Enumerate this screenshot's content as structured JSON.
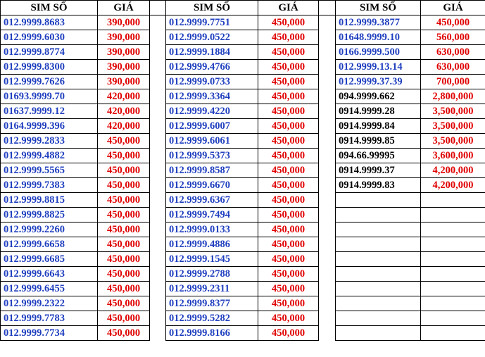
{
  "headers": {
    "sim": "SIM SỐ",
    "price": "GIÁ"
  },
  "colors": {
    "blue": "#1f3fbf",
    "red": "#e00000",
    "black": "#000000"
  },
  "col1": [
    {
      "sim": "012.9999.8683",
      "price": "390,000"
    },
    {
      "sim": "012.9999.6030",
      "price": "390,000"
    },
    {
      "sim": "012.9999.8774",
      "price": "390,000"
    },
    {
      "sim": "012.9999.8300",
      "price": "390,000"
    },
    {
      "sim": "012.9999.7626",
      "price": "390,000"
    },
    {
      "sim": "01693.9999.70",
      "price": "420,000"
    },
    {
      "sim": "01637.9999.12",
      "price": "420,000"
    },
    {
      "sim": "0164.9999.396",
      "price": "420,000"
    },
    {
      "sim": "012.9999.2833",
      "price": "450,000"
    },
    {
      "sim": "012.9999.4882",
      "price": "450,000"
    },
    {
      "sim": "012.9999.5565",
      "price": "450,000"
    },
    {
      "sim": "012.9999.7383",
      "price": "450,000"
    },
    {
      "sim": "012.9999.8815",
      "price": "450,000"
    },
    {
      "sim": "012.9999.8825",
      "price": "450,000"
    },
    {
      "sim": "012.9999.2260",
      "price": "450,000"
    },
    {
      "sim": "012.9999.6658",
      "price": "450,000"
    },
    {
      "sim": "012.9999.6685",
      "price": "450,000"
    },
    {
      "sim": "012.9999.6643",
      "price": "450,000"
    },
    {
      "sim": "012.9999.6455",
      "price": "450,000"
    },
    {
      "sim": "012.9999.2322",
      "price": "450,000"
    },
    {
      "sim": "012.9999.7783",
      "price": "450,000"
    },
    {
      "sim": "012.9999.7734",
      "price": "450,000"
    }
  ],
  "col2": [
    {
      "sim": "012.9999.7751",
      "price": "450,000"
    },
    {
      "sim": "012.9999.0522",
      "price": "450,000"
    },
    {
      "sim": "012.9999.1884",
      "price": "450,000"
    },
    {
      "sim": "012.9999.4766",
      "price": "450,000"
    },
    {
      "sim": "012.9999.0733",
      "price": "450,000"
    },
    {
      "sim": "012.9999.3364",
      "price": "450,000"
    },
    {
      "sim": "012.9999.4220",
      "price": "450,000"
    },
    {
      "sim": "012.9999.6007",
      "price": "450,000"
    },
    {
      "sim": "012.9999.6061",
      "price": "450,000"
    },
    {
      "sim": "012.9999.5373",
      "price": "450,000"
    },
    {
      "sim": "012.9999.8587",
      "price": "450,000"
    },
    {
      "sim": "012.9999.6670",
      "price": "450,000"
    },
    {
      "sim": "012.9999.6367",
      "price": "450,000"
    },
    {
      "sim": "012.9999.7494",
      "price": "450,000"
    },
    {
      "sim": "012.9999.0133",
      "price": "450,000"
    },
    {
      "sim": "012.9999.4886",
      "price": "450,000"
    },
    {
      "sim": "012.9999.1545",
      "price": "450,000"
    },
    {
      "sim": "012.9999.2788",
      "price": "450,000"
    },
    {
      "sim": "012.9999.2311",
      "price": "450,000"
    },
    {
      "sim": "012.9999.8377",
      "price": "450,000"
    },
    {
      "sim": "012.9999.5282",
      "price": "450,000"
    },
    {
      "sim": "012.9999.8166",
      "price": "450,000"
    }
  ],
  "col3": [
    {
      "sim": "012.9999.3877",
      "price": "450,000",
      "simColor": "blue"
    },
    {
      "sim": "01648.9999.10",
      "price": "560,000",
      "simColor": "blue"
    },
    {
      "sim": "0166.9999.500",
      "price": "630,000",
      "simColor": "blue"
    },
    {
      "sim": "012.9999.13.14",
      "price": "630,000",
      "simColor": "blue"
    },
    {
      "sim": "012.9999.37.39",
      "price": "700,000",
      "simColor": "blue"
    },
    {
      "sim": "094.9999.662",
      "price": "2,800,000",
      "simColor": "black"
    },
    {
      "sim": "0914.9999.28",
      "price": "3,500,000",
      "simColor": "black"
    },
    {
      "sim": "0914.9999.84",
      "price": "3,500,000",
      "simColor": "black"
    },
    {
      "sim": "0914.9999.85",
      "price": "3,500,000",
      "simColor": "black"
    },
    {
      "sim": "094.66.99995",
      "price": "3,600,000",
      "simColor": "black"
    },
    {
      "sim": "0914.9999.37",
      "price": "4,200,000",
      "simColor": "black"
    },
    {
      "sim": "0914.9999.83",
      "price": "4,200,000",
      "simColor": "black"
    }
  ]
}
